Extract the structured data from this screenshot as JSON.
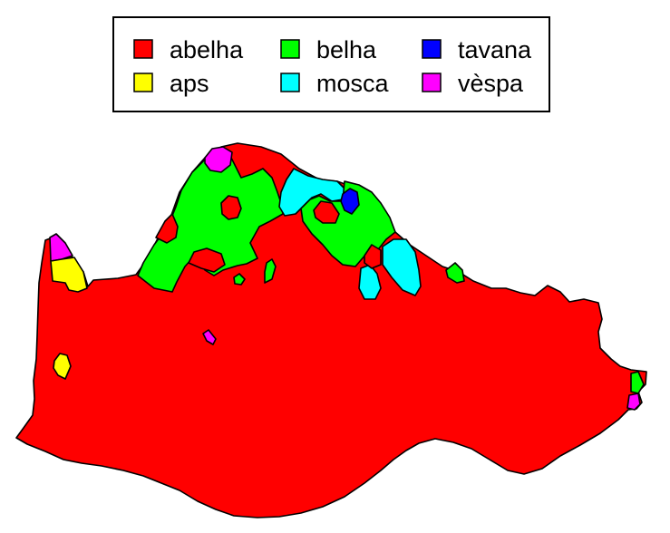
{
  "legend": {
    "items": [
      {
        "label": "abelha",
        "color": "#ff0000"
      },
      {
        "label": "aps",
        "color": "#ffff00"
      },
      {
        "label": "belha",
        "color": "#00ff00"
      },
      {
        "label": "mosca",
        "color": "#00ffff"
      },
      {
        "label": "tavana",
        "color": "#0000ff"
      },
      {
        "label": "vèspa",
        "color": "#ff00ff"
      }
    ]
  }
}
